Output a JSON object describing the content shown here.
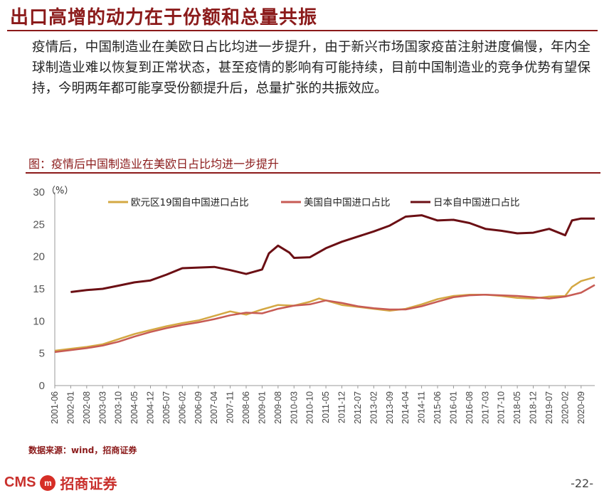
{
  "slide": {
    "title": "出口高增的动力在于份额和总量共振",
    "body": "疫情后，中国制造业在美欧日占比均进一步提升，由于新兴市场国家疫苗注射进度偏慢，年内全球制造业难以恢复到正常状态，甚至疫情的影响有可能持续，目前中国制造业的竞争优势有望保持，今明两年都可能享受份额提升后，总量扩张的共振效应。",
    "chart_heading": "图：疫情后中国制造业在美欧日占比均进一步提升",
    "source": "数据来源：wind，招商证券",
    "logo_text": "CMS",
    "logo_badge": "m",
    "logo_cn": "招商证券",
    "page": "-22-"
  },
  "colors": {
    "eu": "#d4a843",
    "us": "#c75b54",
    "jp": "#6b0f14",
    "brand": "#8b1a1a"
  },
  "chart_data": {
    "type": "line",
    "unit_label": "（%）",
    "ylim": [
      0,
      30
    ],
    "yticks": [
      0,
      5,
      10,
      15,
      20,
      25,
      30
    ],
    "grid": false,
    "legend": "top",
    "x_tick_labels": [
      "2001-06",
      "2002-01",
      "2002-08",
      "2003-03",
      "2003-10",
      "2004-05",
      "2004-12",
      "2005-07",
      "2006-02",
      "2006-09",
      "2007-04",
      "2007-11",
      "2008-06",
      "2009-01",
      "2009-08",
      "2010-03",
      "2010-10",
      "2011-05",
      "2011-12",
      "2012-07",
      "2013-02",
      "2013-09",
      "2014-04",
      "2014-11",
      "2015-06",
      "2016-01",
      "2016-08",
      "2017-03",
      "2017-10",
      "2018-05",
      "2018-12",
      "2019-07",
      "2020-02",
      "2020-09"
    ],
    "series": [
      {
        "name": "欧元区19国自中国进口占比",
        "color_key": "eu",
        "points": [
          [
            "2001-06",
            5.4
          ],
          [
            "2002-01",
            5.7
          ],
          [
            "2002-08",
            6.0
          ],
          [
            "2003-03",
            6.4
          ],
          [
            "2003-10",
            7.2
          ],
          [
            "2004-05",
            8.0
          ],
          [
            "2004-12",
            8.6
          ],
          [
            "2005-07",
            9.2
          ],
          [
            "2006-02",
            9.7
          ],
          [
            "2006-09",
            10.1
          ],
          [
            "2007-04",
            10.8
          ],
          [
            "2007-11",
            11.5
          ],
          [
            "2008-06",
            11.0
          ],
          [
            "2009-01",
            11.8
          ],
          [
            "2009-08",
            12.5
          ],
          [
            "2010-03",
            12.4
          ],
          [
            "2010-10",
            13.0
          ],
          [
            "2011-02",
            13.5
          ],
          [
            "2011-05",
            13.2
          ],
          [
            "2011-12",
            12.5
          ],
          [
            "2012-07",
            12.2
          ],
          [
            "2013-02",
            11.9
          ],
          [
            "2013-09",
            11.6
          ],
          [
            "2014-04",
            11.9
          ],
          [
            "2014-11",
            12.6
          ],
          [
            "2015-06",
            13.4
          ],
          [
            "2016-01",
            13.9
          ],
          [
            "2016-08",
            14.1
          ],
          [
            "2017-03",
            14.1
          ],
          [
            "2017-10",
            13.9
          ],
          [
            "2018-05",
            13.6
          ],
          [
            "2018-12",
            13.5
          ],
          [
            "2019-07",
            13.8
          ],
          [
            "2020-02",
            13.9
          ],
          [
            "2020-05",
            15.3
          ],
          [
            "2020-09",
            16.2
          ],
          [
            "2021-03",
            16.8
          ]
        ]
      },
      {
        "name": "美国自中国进口占比",
        "color_key": "us",
        "points": [
          [
            "2001-06",
            5.2
          ],
          [
            "2002-01",
            5.5
          ],
          [
            "2002-08",
            5.8
          ],
          [
            "2003-03",
            6.2
          ],
          [
            "2003-10",
            6.8
          ],
          [
            "2004-05",
            7.6
          ],
          [
            "2004-12",
            8.3
          ],
          [
            "2005-07",
            8.9
          ],
          [
            "2006-02",
            9.4
          ],
          [
            "2006-09",
            9.8
          ],
          [
            "2007-04",
            10.3
          ],
          [
            "2007-11",
            10.9
          ],
          [
            "2008-06",
            11.3
          ],
          [
            "2009-01",
            11.2
          ],
          [
            "2009-08",
            11.9
          ],
          [
            "2010-03",
            12.4
          ],
          [
            "2010-10",
            12.6
          ],
          [
            "2011-05",
            13.2
          ],
          [
            "2011-12",
            12.8
          ],
          [
            "2012-07",
            12.3
          ],
          [
            "2013-02",
            12.0
          ],
          [
            "2013-09",
            11.8
          ],
          [
            "2014-04",
            11.8
          ],
          [
            "2014-11",
            12.3
          ],
          [
            "2015-06",
            13.0
          ],
          [
            "2016-01",
            13.7
          ],
          [
            "2016-08",
            14.0
          ],
          [
            "2017-03",
            14.1
          ],
          [
            "2017-10",
            14.0
          ],
          [
            "2018-05",
            13.9
          ],
          [
            "2018-12",
            13.7
          ],
          [
            "2019-07",
            13.5
          ],
          [
            "2020-02",
            13.8
          ],
          [
            "2020-09",
            14.4
          ],
          [
            "2021-03",
            15.6
          ]
        ]
      },
      {
        "name": "日本自中国进口占比",
        "color_key": "jp",
        "points": [
          [
            "2002-01",
            14.5
          ],
          [
            "2002-08",
            14.8
          ],
          [
            "2003-03",
            15.0
          ],
          [
            "2003-10",
            15.5
          ],
          [
            "2004-05",
            16.0
          ],
          [
            "2004-12",
            16.3
          ],
          [
            "2005-07",
            17.2
          ],
          [
            "2006-02",
            18.2
          ],
          [
            "2006-09",
            18.3
          ],
          [
            "2007-04",
            18.4
          ],
          [
            "2007-11",
            17.9
          ],
          [
            "2008-06",
            17.3
          ],
          [
            "2009-01",
            18.0
          ],
          [
            "2009-04",
            20.5
          ],
          [
            "2009-08",
            21.7
          ],
          [
            "2010-01",
            20.6
          ],
          [
            "2010-03",
            19.8
          ],
          [
            "2010-10",
            19.9
          ],
          [
            "2011-05",
            21.3
          ],
          [
            "2011-12",
            22.3
          ],
          [
            "2012-07",
            23.1
          ],
          [
            "2013-02",
            23.9
          ],
          [
            "2013-09",
            24.8
          ],
          [
            "2014-04",
            26.2
          ],
          [
            "2014-11",
            26.4
          ],
          [
            "2015-06",
            25.6
          ],
          [
            "2016-01",
            25.7
          ],
          [
            "2016-08",
            25.2
          ],
          [
            "2017-03",
            24.3
          ],
          [
            "2017-10",
            24.0
          ],
          [
            "2018-05",
            23.6
          ],
          [
            "2018-12",
            23.7
          ],
          [
            "2019-07",
            24.3
          ],
          [
            "2020-02",
            23.3
          ],
          [
            "2020-05",
            25.6
          ],
          [
            "2020-09",
            25.9
          ],
          [
            "2021-03",
            25.9
          ]
        ]
      }
    ]
  }
}
